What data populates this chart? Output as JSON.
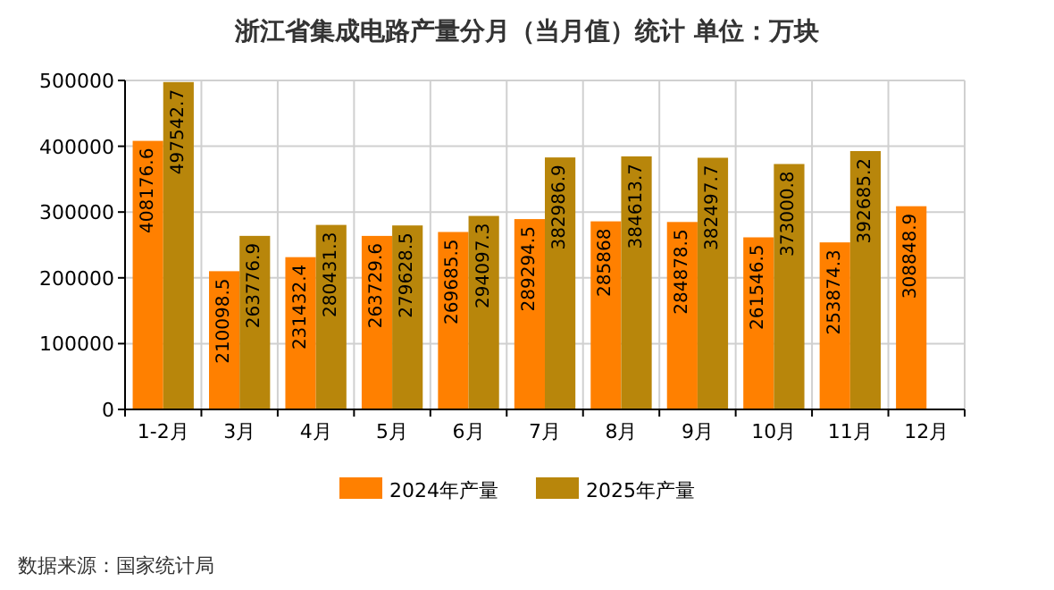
{
  "chart_data": {
    "type": "bar",
    "title": "浙江省集成电路产量分月（当月值）统计  单位：万块",
    "categories": [
      "1-2月",
      "3月",
      "4月",
      "5月",
      "6月",
      "7月",
      "8月",
      "9月",
      "10月",
      "11月",
      "12月"
    ],
    "series": [
      {
        "name": "2024年产量",
        "color": "#ff8000",
        "values": [
          408176.6,
          210098.5,
          231432.4,
          263729.6,
          269685.5,
          289294.5,
          285868,
          284878.5,
          261546.5,
          253874.3,
          308848.9
        ]
      },
      {
        "name": "2025年产量",
        "color": "#b8860b",
        "values": [
          497542.7,
          263776.9,
          280431.3,
          279628.5,
          294097.3,
          382986.9,
          384613.7,
          382497.7,
          373000.8,
          392685.2,
          null
        ]
      }
    ],
    "ylim": [
      0,
      500000
    ],
    "yticks": [
      0,
      100000,
      200000,
      300000,
      400000,
      500000
    ],
    "grid": true,
    "legend": "bottom",
    "data_labels": true,
    "annotations": [
      "数据来源：国家统计局"
    ]
  }
}
